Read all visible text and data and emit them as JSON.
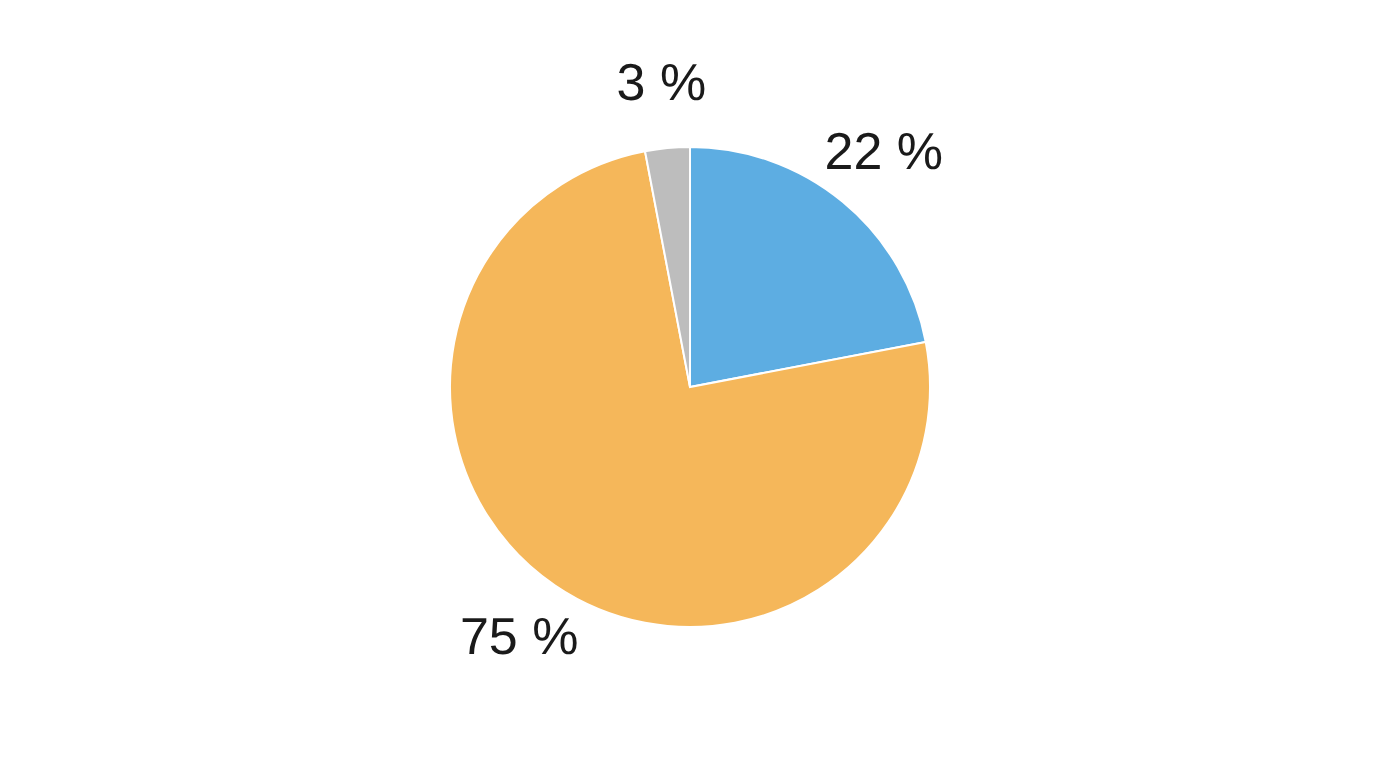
{
  "chart_data": {
    "type": "pie",
    "categories": [
      null,
      null,
      null
    ],
    "values": [
      22,
      75,
      3
    ],
    "colors": [
      "#5dade2",
      "#f5b75a",
      "#bdbdbd"
    ],
    "value_labels": [
      "22 %",
      "75 %",
      "3 %"
    ]
  }
}
